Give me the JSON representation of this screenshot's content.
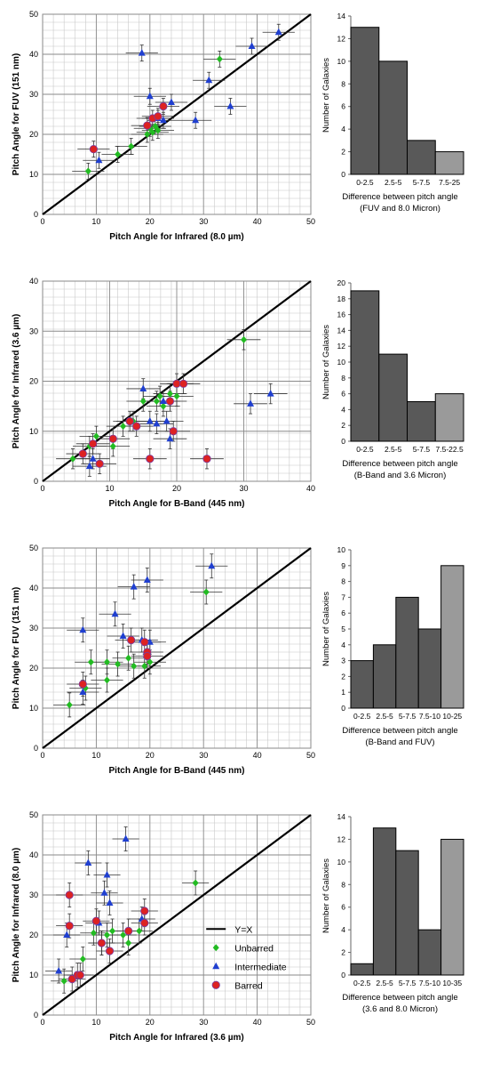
{
  "chart_data": [
    {
      "type": "scatter",
      "xlabel": "Pitch Angle for Infrared (8.0 µm)",
      "ylabel": "Pitch Angle for FUV  (151 nm)",
      "xlim": [
        0,
        50
      ],
      "ylim": [
        0,
        50
      ],
      "xticks": [
        "0",
        "10",
        "20",
        "30",
        "40",
        "50"
      ],
      "yticks": [
        "0",
        "10",
        "20",
        "30",
        "40",
        "50"
      ],
      "grid": true,
      "reference_line": "y=x",
      "series": [
        {
          "name": "Unbarred",
          "color": "#22bb22",
          "marker": "diamond",
          "points": [
            [
              8.5,
              10.8
            ],
            [
              14,
              15
            ],
            [
              16.5,
              17
            ],
            [
              19.5,
              20
            ],
            [
              20,
              21.5
            ],
            [
              20.5,
              20.5
            ],
            [
              21,
              22
            ],
            [
              21.5,
              21
            ],
            [
              33,
              38.8
            ]
          ]
        },
        {
          "name": "Intermediate",
          "color": "#1f3fd0",
          "marker": "triangle",
          "points": [
            [
              10.5,
              13.5
            ],
            [
              18.5,
              40.3
            ],
            [
              20,
              29.5
            ],
            [
              22.5,
              23.5
            ],
            [
              24,
              28
            ],
            [
              28.5,
              23.5
            ],
            [
              31,
              33.5
            ],
            [
              35,
              27
            ],
            [
              39,
              42
            ],
            [
              44,
              45.5
            ],
            [
              21.5,
              24
            ]
          ]
        },
        {
          "name": "Barred",
          "color": "#dd2222",
          "marker": "circle",
          "points": [
            [
              9.5,
              16.3
            ],
            [
              19.5,
              22.2
            ],
            [
              20.5,
              24
            ],
            [
              21.5,
              24.5
            ],
            [
              22.5,
              27
            ]
          ]
        }
      ],
      "errors": {
        "x": 3,
        "y": 2
      }
    },
    {
      "type": "bar",
      "categories": [
        "0-2.5",
        "2.5-5",
        "5-7.5",
        "7.5-25"
      ],
      "values": [
        13,
        10,
        3,
        2
      ],
      "ylabel": "Number of Galaxies",
      "xlabel": "Difference between pitch angle (FUV and 8.0 Micron)",
      "xlabel_lines": [
        "Difference between pitch angle",
        "(FUV and 8.0 Micron)"
      ],
      "ylim": [
        0,
        14
      ],
      "ytick_step": 2,
      "bar_colors": [
        "#595959",
        "#595959",
        "#595959",
        "#9a9a9a"
      ]
    },
    {
      "type": "scatter",
      "xlabel": "Pitch Angle for B-Band  (445 nm)",
      "ylabel": "Pitch Angle for Infrared (3.6 µm)",
      "xlim": [
        0,
        40
      ],
      "ylim": [
        0,
        40
      ],
      "xticks": [
        "0",
        "10",
        "20",
        "30",
        "40"
      ],
      "yticks": [
        "0",
        "10",
        "20",
        "30",
        "40"
      ],
      "grid": true,
      "reference_line": "y=x",
      "series": [
        {
          "name": "Unbarred",
          "color": "#22bb22",
          "marker": "diamond",
          "points": [
            [
              4.5,
              4.5
            ],
            [
              7,
              7
            ],
            [
              8,
              9
            ],
            [
              10.5,
              7
            ],
            [
              12,
              11
            ],
            [
              13.5,
              12
            ],
            [
              15,
              16
            ],
            [
              17,
              16
            ],
            [
              17.5,
              17
            ],
            [
              18,
              15
            ],
            [
              19,
              17.5
            ],
            [
              20,
              17
            ],
            [
              30,
              28.3
            ]
          ]
        },
        {
          "name": "Intermediate",
          "color": "#1f3fd0",
          "marker": "triangle",
          "points": [
            [
              7,
              3
            ],
            [
              7.5,
              4.5
            ],
            [
              15,
              18.5
            ],
            [
              16,
              12
            ],
            [
              17,
              11.5
            ],
            [
              18,
              16
            ],
            [
              18.5,
              12
            ],
            [
              19,
              8.5
            ],
            [
              31,
              15.5
            ],
            [
              34,
              17.5
            ]
          ]
        },
        {
          "name": "Barred",
          "color": "#dd2222",
          "marker": "circle",
          "points": [
            [
              6,
              5.5
            ],
            [
              7.5,
              7.5
            ],
            [
              8.5,
              3.5
            ],
            [
              10.5,
              8.5
            ],
            [
              13,
              12
            ],
            [
              14,
              11
            ],
            [
              16,
              4.5
            ],
            [
              19,
              16
            ],
            [
              19.5,
              10
            ],
            [
              20,
              19.5
            ],
            [
              21,
              19.5
            ],
            [
              24.5,
              4.5
            ]
          ]
        }
      ],
      "errors": {
        "x": 2.5,
        "y": 2
      }
    },
    {
      "type": "bar",
      "categories": [
        "0-2.5",
        "2.5-5",
        "5-7.5",
        "7.5-22.5"
      ],
      "values": [
        19,
        11,
        5,
        6
      ],
      "ylabel": "Number of Galaxies",
      "xlabel": "Difference between pitch angle (B-Band and 3.6 Micron)",
      "xlabel_lines": [
        "Difference between pitch angle",
        "(B-Band and 3.6 Micron)"
      ],
      "ylim": [
        0,
        20
      ],
      "ytick_step": 2,
      "bar_colors": [
        "#595959",
        "#595959",
        "#595959",
        "#9a9a9a"
      ]
    },
    {
      "type": "scatter",
      "xlabel": "Pitch Angle for B-Band  (445 nm)",
      "ylabel": "Pitch Angle for FUV  (151 nm)",
      "xlim": [
        0,
        50
      ],
      "ylim": [
        0,
        50
      ],
      "xticks": [
        "0",
        "10",
        "20",
        "30",
        "40",
        "50"
      ],
      "yticks": [
        "0",
        "10",
        "20",
        "30",
        "40",
        "50"
      ],
      "grid": true,
      "reference_line": "y=x",
      "series": [
        {
          "name": "Unbarred",
          "color": "#22bb22",
          "marker": "diamond",
          "points": [
            [
              5,
              10.8
            ],
            [
              8,
              15
            ],
            [
              9,
              21.5
            ],
            [
              12,
              17
            ],
            [
              12,
              21.5
            ],
            [
              14,
              21
            ],
            [
              16,
              22.5
            ],
            [
              17,
              20.5
            ],
            [
              19,
              20.5
            ],
            [
              20,
              21.5
            ],
            [
              30.5,
              39
            ]
          ]
        },
        {
          "name": "Intermediate",
          "color": "#1f3fd0",
          "marker": "triangle",
          "points": [
            [
              7.5,
              14
            ],
            [
              7.5,
              29.5
            ],
            [
              13.5,
              33.5
            ],
            [
              15,
              28
            ],
            [
              17,
              40.3
            ],
            [
              18.5,
              27
            ],
            [
              19.5,
              42
            ],
            [
              20,
              26.5
            ],
            [
              31.5,
              45.5
            ]
          ]
        },
        {
          "name": "Barred",
          "color": "#dd2222",
          "marker": "circle",
          "points": [
            [
              7.5,
              16
            ],
            [
              16.5,
              27
            ],
            [
              19,
              26.5
            ],
            [
              19.5,
              24
            ],
            [
              19.5,
              23
            ]
          ]
        }
      ],
      "errors": {
        "x": 3,
        "y": 3
      }
    },
    {
      "type": "bar",
      "categories": [
        "0-2.5",
        "2.5-5",
        "5-7.5",
        "7.5-10",
        "10-25"
      ],
      "values": [
        3,
        4,
        7,
        5,
        9
      ],
      "ylabel": "Number of Galaxies",
      "xlabel": "Difference between pitch angle (B-Band and FUV)",
      "xlabel_lines": [
        "Difference between pitch angle",
        "(B-Band and FUV)"
      ],
      "ylim": [
        0,
        10
      ],
      "ytick_step": 1,
      "bar_colors": [
        "#595959",
        "#595959",
        "#595959",
        "#595959",
        "#9a9a9a"
      ]
    },
    {
      "type": "scatter",
      "xlabel": "Pitch Angle for Infrared (3.6 µm)",
      "ylabel": "Pitch Angle for Infrared (8.0 µm)",
      "xlim": [
        0,
        50
      ],
      "ylim": [
        0,
        50
      ],
      "xticks": [
        "0",
        "10",
        "20",
        "30",
        "40",
        "50"
      ],
      "yticks": [
        "0",
        "10",
        "20",
        "30",
        "40",
        "50"
      ],
      "grid": true,
      "reference_line": "y=x",
      "series": [
        {
          "name": "Unbarred",
          "color": "#22bb22",
          "marker": "diamond",
          "points": [
            [
              4,
              8.5
            ],
            [
              7.5,
              14
            ],
            [
              9.5,
              20.5
            ],
            [
              11,
              18
            ],
            [
              12,
              20
            ],
            [
              13,
              21
            ],
            [
              15,
              20
            ],
            [
              16,
              18
            ],
            [
              18,
              21
            ],
            [
              28.5,
              33
            ]
          ]
        },
        {
          "name": "Intermediate",
          "color": "#1f3fd0",
          "marker": "triangle",
          "points": [
            [
              3,
              11
            ],
            [
              4.5,
              20
            ],
            [
              8.5,
              38
            ],
            [
              10.5,
              23
            ],
            [
              11.5,
              30.5
            ],
            [
              12,
              35
            ],
            [
              12.5,
              28
            ],
            [
              15.5,
              44
            ],
            [
              18.5,
              24
            ]
          ]
        },
        {
          "name": "Barred",
          "color": "#dd2222",
          "marker": "circle",
          "points": [
            [
              5,
              30
            ],
            [
              5,
              22.3
            ],
            [
              5.5,
              9
            ],
            [
              6.5,
              10
            ],
            [
              7,
              10
            ],
            [
              10,
              23.5
            ],
            [
              11,
              18
            ],
            [
              12.5,
              16
            ],
            [
              16,
              21
            ],
            [
              19,
              26
            ],
            [
              19,
              23
            ]
          ]
        }
      ],
      "errors": {
        "x": 2.5,
        "y": 3
      },
      "legend": {
        "placement": "bottom-right",
        "entries": [
          {
            "label": "Y=X",
            "marker": "line"
          },
          {
            "label": "Unbarred",
            "marker": "diamond",
            "color": "#22bb22"
          },
          {
            "label": "Intermediate",
            "marker": "triangle",
            "color": "#1f3fd0"
          },
          {
            "label": "Barred",
            "marker": "circle",
            "color": "#dd2222"
          }
        ]
      }
    },
    {
      "type": "bar",
      "categories": [
        "0-2.5",
        "2.5-5",
        "5-7.5",
        "7.5-10",
        "10-35"
      ],
      "values": [
        1,
        13,
        11,
        4,
        12
      ],
      "ylabel": "Number of Galaxies",
      "xlabel": "Difference between pitch angle (3.6 and 8.0 Micron)",
      "xlabel_lines": [
        "Difference between pitch angle",
        "(3.6 and 8.0 Micron)"
      ],
      "ylim": [
        0,
        14
      ],
      "ytick_step": 2,
      "bar_colors": [
        "#595959",
        "#595959",
        "#595959",
        "#595959",
        "#9a9a9a"
      ]
    }
  ]
}
